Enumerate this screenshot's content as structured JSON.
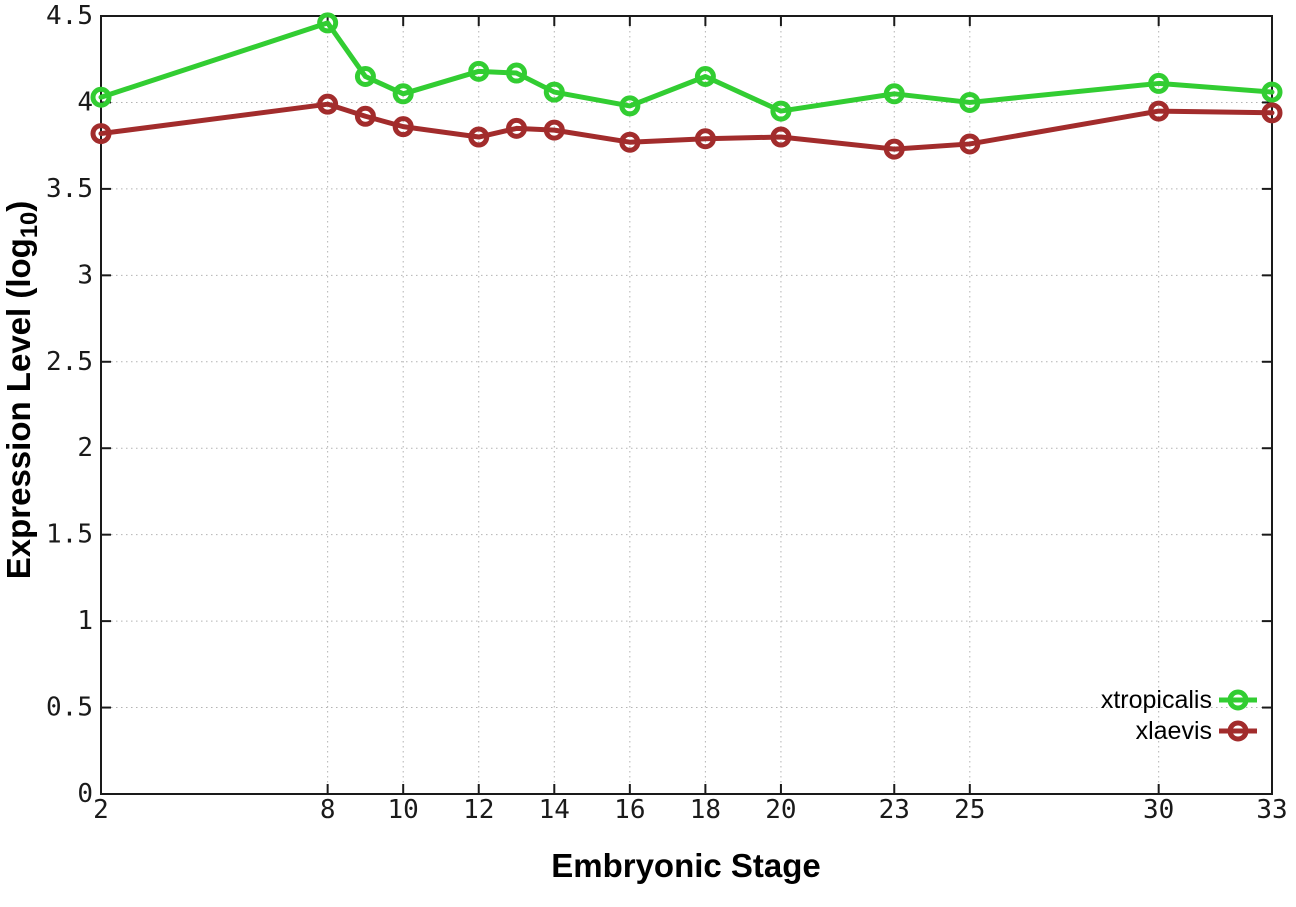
{
  "chart_data": {
    "type": "line",
    "title": "",
    "xlabel": "Embryonic Stage",
    "ylabel": "Expression Level (log10)",
    "ylabel_parts": {
      "main": "Expression Level (log",
      "sub": "10",
      "end": ")"
    },
    "x": [
      2,
      8,
      9,
      10,
      12,
      13,
      14,
      16,
      18,
      20,
      23,
      25,
      30,
      33
    ],
    "series": [
      {
        "name": "xtropicalis",
        "color": "#32cd32",
        "values": [
          4.03,
          4.46,
          4.15,
          4.05,
          4.18,
          4.17,
          4.06,
          3.98,
          4.15,
          3.95,
          4.05,
          4.0,
          4.11,
          4.06
        ]
      },
      {
        "name": "xlaevis",
        "color": "#a22c2c",
        "values": [
          3.82,
          3.99,
          3.92,
          3.86,
          3.8,
          3.85,
          3.84,
          3.77,
          3.79,
          3.8,
          3.73,
          3.76,
          3.95,
          3.94
        ]
      }
    ],
    "xlim": [
      2,
      33
    ],
    "ylim": [
      0,
      4.5
    ],
    "xticks": [
      2,
      8,
      10,
      12,
      14,
      16,
      18,
      20,
      23,
      25,
      30,
      33
    ],
    "xtick_labels": [
      "2",
      "8",
      "10",
      "12",
      "14",
      "16",
      "18",
      "20",
      "23",
      "25",
      "30",
      "33"
    ],
    "yticks": [
      0,
      0.5,
      1,
      1.5,
      2,
      2.5,
      3,
      3.5,
      4,
      4.5
    ],
    "ytick_labels": [
      "0",
      "0.5",
      "1",
      "1.5",
      "2",
      "2.5",
      "3",
      "3.5",
      "4",
      "4.5"
    ],
    "grid": true,
    "grid_color": "#b3b3b3",
    "border_color": "#1a1a1a",
    "legend_position": "bottom-right-inside",
    "marker": "open-circle"
  }
}
